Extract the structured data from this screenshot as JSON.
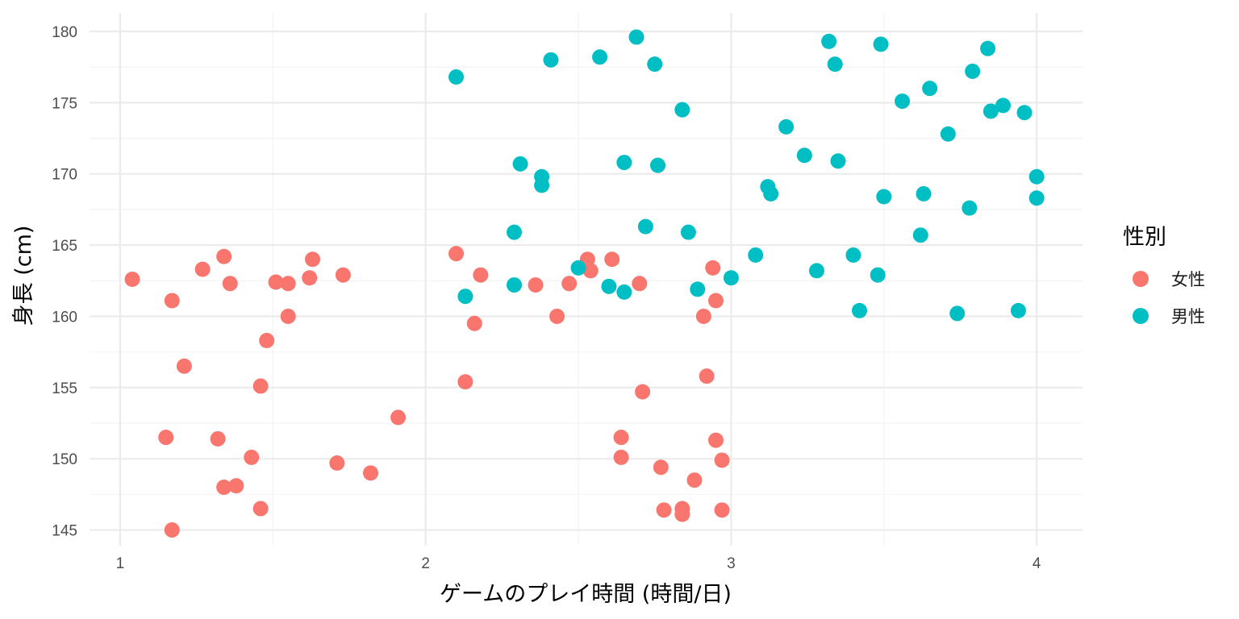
{
  "chart_data": {
    "type": "scatter",
    "title": "",
    "xlabel": "ゲームのプレイ時間 (時間/日)",
    "ylabel": "身長 (cm)",
    "xlim": [
      0.9,
      4.15
    ],
    "ylim": [
      143.9,
      181.3
    ],
    "xticks": [
      1,
      2,
      3,
      4
    ],
    "yticks": [
      145,
      150,
      155,
      160,
      165,
      170,
      175,
      180
    ],
    "grid": true,
    "legend": {
      "title": "性別",
      "position": "right"
    },
    "colors": {
      "female": "#F8766D",
      "male": "#00BFC4",
      "grid": "#EBEBEB"
    },
    "series": [
      {
        "name": "女性",
        "color": "#F8766D",
        "points": [
          [
            1.04,
            162.6
          ],
          [
            1.17,
            161.1
          ],
          [
            1.27,
            163.3
          ],
          [
            1.34,
            164.2
          ],
          [
            1.36,
            162.3
          ],
          [
            1.21,
            156.5
          ],
          [
            1.51,
            162.4
          ],
          [
            1.55,
            162.3
          ],
          [
            1.62,
            162.7
          ],
          [
            1.63,
            164.0
          ],
          [
            1.73,
            162.9
          ],
          [
            1.55,
            160.0
          ],
          [
            1.48,
            158.3
          ],
          [
            1.46,
            155.1
          ],
          [
            1.15,
            151.5
          ],
          [
            1.32,
            151.4
          ],
          [
            1.43,
            150.1
          ],
          [
            1.34,
            148.0
          ],
          [
            1.38,
            148.1
          ],
          [
            1.46,
            146.5
          ],
          [
            1.17,
            145.0
          ],
          [
            1.71,
            149.7
          ],
          [
            1.82,
            149.0
          ],
          [
            1.91,
            152.9
          ],
          [
            2.1,
            164.4
          ],
          [
            2.18,
            162.9
          ],
          [
            2.36,
            162.2
          ],
          [
            2.16,
            159.5
          ],
          [
            2.13,
            155.4
          ],
          [
            2.43,
            160.0
          ],
          [
            2.47,
            162.3
          ],
          [
            2.53,
            164.0
          ],
          [
            2.54,
            163.2
          ],
          [
            2.61,
            164.0
          ],
          [
            2.7,
            162.3
          ],
          [
            2.71,
            154.7
          ],
          [
            2.64,
            151.5
          ],
          [
            2.64,
            150.1
          ],
          [
            2.77,
            149.4
          ],
          [
            2.78,
            146.4
          ],
          [
            2.84,
            146.5
          ],
          [
            2.84,
            146.1
          ],
          [
            2.88,
            148.5
          ],
          [
            2.91,
            160.0
          ],
          [
            2.92,
            155.8
          ],
          [
            2.94,
            163.4
          ],
          [
            2.95,
            161.1
          ],
          [
            2.95,
            151.3
          ],
          [
            2.97,
            149.9
          ],
          [
            2.97,
            146.4
          ]
        ]
      },
      {
        "name": "男性",
        "color": "#00BFC4",
        "points": [
          [
            2.1,
            176.8
          ],
          [
            2.41,
            178.0
          ],
          [
            2.57,
            178.2
          ],
          [
            2.69,
            179.6
          ],
          [
            2.75,
            177.7
          ],
          [
            2.84,
            174.5
          ],
          [
            2.31,
            170.7
          ],
          [
            2.38,
            169.8
          ],
          [
            2.38,
            169.2
          ],
          [
            2.65,
            170.8
          ],
          [
            2.76,
            170.6
          ],
          [
            2.29,
            165.9
          ],
          [
            2.72,
            166.3
          ],
          [
            2.86,
            165.9
          ],
          [
            2.13,
            161.4
          ],
          [
            2.29,
            162.2
          ],
          [
            2.5,
            163.4
          ],
          [
            2.6,
            162.1
          ],
          [
            2.65,
            161.7
          ],
          [
            2.89,
            161.9
          ],
          [
            3.0,
            162.7
          ],
          [
            3.08,
            164.3
          ],
          [
            3.12,
            169.1
          ],
          [
            3.13,
            168.6
          ],
          [
            3.18,
            173.3
          ],
          [
            3.24,
            171.3
          ],
          [
            3.28,
            163.2
          ],
          [
            3.32,
            179.3
          ],
          [
            3.34,
            177.7
          ],
          [
            3.35,
            170.9
          ],
          [
            3.4,
            164.3
          ],
          [
            3.42,
            160.4
          ],
          [
            3.48,
            162.9
          ],
          [
            3.49,
            179.1
          ],
          [
            3.5,
            168.4
          ],
          [
            3.56,
            175.1
          ],
          [
            3.62,
            165.7
          ],
          [
            3.63,
            168.6
          ],
          [
            3.65,
            176.0
          ],
          [
            3.71,
            172.8
          ],
          [
            3.74,
            160.2
          ],
          [
            3.78,
            167.6
          ],
          [
            3.79,
            177.2
          ],
          [
            3.84,
            178.8
          ],
          [
            3.85,
            174.4
          ],
          [
            3.89,
            174.8
          ],
          [
            3.94,
            160.4
          ],
          [
            3.96,
            174.3
          ],
          [
            4.0,
            169.8
          ],
          [
            4.0,
            168.3
          ]
        ]
      }
    ]
  }
}
